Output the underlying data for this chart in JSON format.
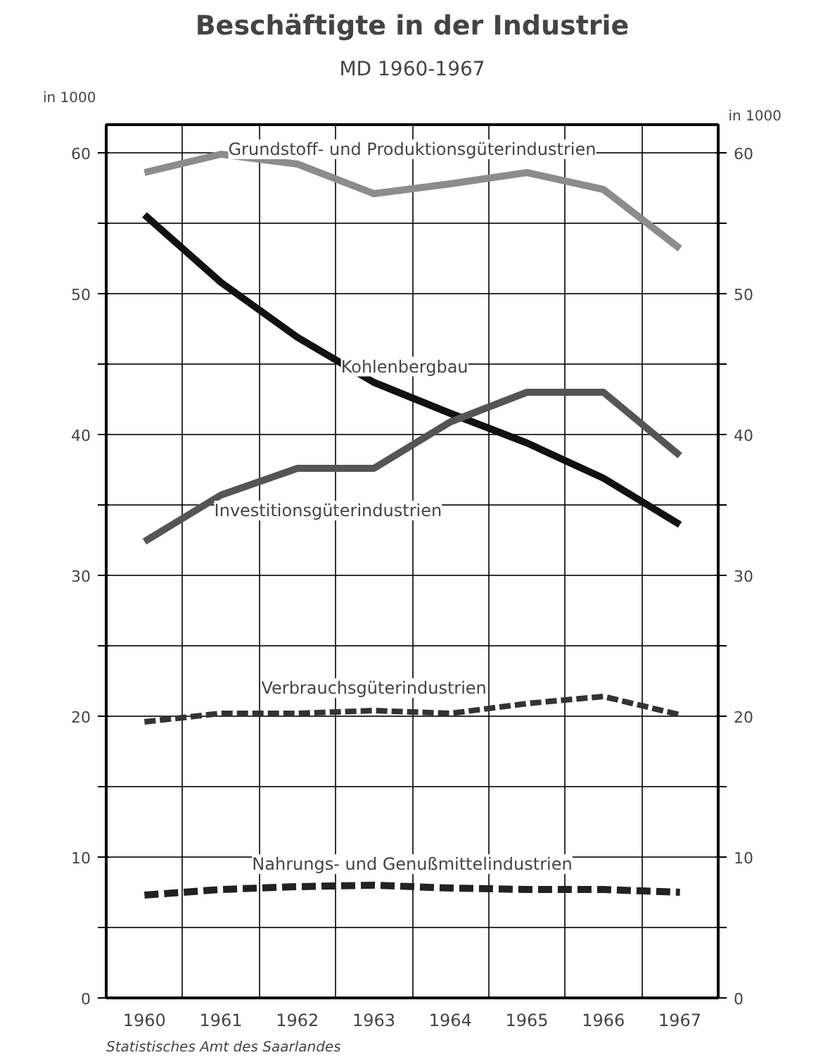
{
  "chart_data": {
    "type": "line",
    "title": "Beschäftigte in der Industrie",
    "subtitle": "MD 1960-1967",
    "ylabel": "in 1000",
    "y2label": "in 1000",
    "categories": [
      "1960",
      "1961",
      "1962",
      "1963",
      "1964",
      "1965",
      "1966",
      "1967"
    ],
    "series": [
      {
        "name": "Grundstoff- und Produktionsgüterindustrien",
        "color": "#8c8c8c",
        "line_style": "solid",
        "values": [
          58.6,
          59.9,
          59.2,
          57.1,
          57.8,
          58.6,
          57.4,
          53.2
        ]
      },
      {
        "name": "Kohlenbergbau",
        "color": "#111111",
        "line_style": "solid",
        "values": [
          55.6,
          50.8,
          46.9,
          43.7,
          41.5,
          39.4,
          36.9,
          33.6
        ]
      },
      {
        "name": "Investitionsgüterindustrien",
        "color": "#555555",
        "line_style": "solid",
        "values": [
          32.4,
          35.7,
          37.6,
          37.6,
          40.9,
          43.0,
          43.0,
          38.5
        ]
      },
      {
        "name": "Verbrauchsgüterindustrien",
        "color": "#333333",
        "line_style": "dashed",
        "values": [
          19.6,
          20.2,
          20.2,
          20.4,
          20.2,
          20.9,
          21.4,
          20.1
        ]
      },
      {
        "name": "Nahrungs- und Genußmittelindustrien",
        "color": "#222222",
        "line_style": "dotted",
        "values": [
          7.3,
          7.7,
          7.9,
          8.0,
          7.8,
          7.7,
          7.7,
          7.5
        ]
      }
    ],
    "ylim": [
      0,
      62
    ],
    "yticks": [
      0,
      {
        "value": 5,
        "label": null
      },
      10,
      {
        "value": 15,
        "label": null
      },
      20,
      {
        "value": 25,
        "label": null
      },
      30,
      {
        "value": 35,
        "label": null
      },
      40,
      {
        "value": 45,
        "label": null
      },
      50,
      {
        "value": 55,
        "label": null
      },
      60
    ],
    "y2lim": [
      0,
      62
    ],
    "y2ticks": [
      0,
      {
        "value": 5,
        "label": null
      },
      10,
      {
        "value": 15,
        "label": null
      },
      20,
      {
        "value": 25,
        "label": null
      },
      30,
      {
        "value": 35,
        "label": null
      },
      40,
      {
        "value": 45,
        "label": null
      },
      50,
      {
        "value": 55,
        "label": null
      },
      60
    ],
    "grid": true,
    "legend": false,
    "marker": "none",
    "annotations": [
      "Statistisches Amt des Saarlandes"
    ]
  }
}
